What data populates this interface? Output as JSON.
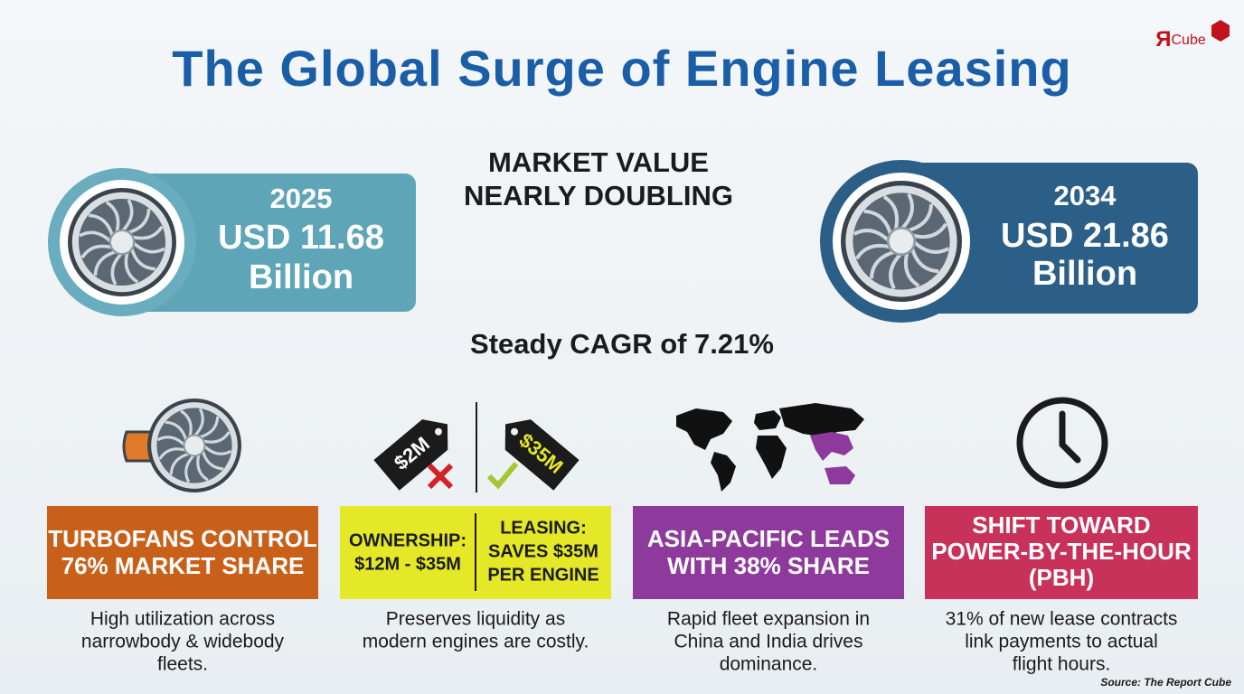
{
  "logo": {
    "mark": "Я",
    "name": "Cube"
  },
  "title": "The Global Surge of Engine Leasing",
  "headline": [
    "MARKET VALUE",
    "NEARLY DOUBLING"
  ],
  "cards": [
    {
      "year": "2025",
      "value": "USD 11.68",
      "unit": "Billion"
    },
    {
      "year": "2034",
      "value": "USD 21.86",
      "unit": "Billion"
    }
  ],
  "cagr": "Steady CAGR of 7.21%",
  "tags": [
    "$2M",
    "$35M"
  ],
  "panels": [
    {
      "heading": [
        "TURBOFANS CONTROL",
        "76% MARKET SHARE"
      ],
      "description": [
        "High utilization across",
        "narrowbody & widebody",
        "fleets."
      ]
    },
    {
      "heading_left": [
        "OWNERSHIP:",
        "$12M - $35M"
      ],
      "heading_right": [
        "LEASING:",
        "SAVES $35M",
        "PER ENGINE"
      ],
      "description": [
        "Preserves liquidity as",
        "modern engines are costly."
      ]
    },
    {
      "heading": [
        "ASIA-PACIFIC LEADS",
        "WITH 38% SHARE"
      ],
      "description": [
        "Rapid fleet expansion in",
        "China and India drives",
        "dominance."
      ]
    },
    {
      "heading": [
        "SHIFT TOWARD",
        "POWER-BY-THE-HOUR",
        "(PBH)"
      ],
      "description": [
        "31% of new lease contracts",
        "link payments to actual",
        "flight hours."
      ]
    }
  ],
  "source": "Source: The Report Cube"
}
